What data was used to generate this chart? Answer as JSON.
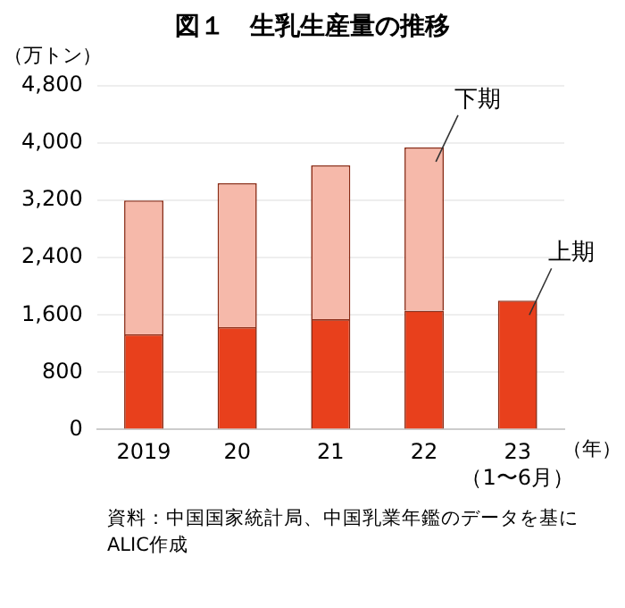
{
  "chart_data": {
    "type": "bar",
    "title": "図１　生乳生産量の推移",
    "ylabel": "（万トン）",
    "xlabel": "（年）",
    "categories": [
      "2019",
      "20",
      "21",
      "22",
      "23\n（1〜6月）"
    ],
    "stacked": true,
    "series": [
      {
        "name": "上期",
        "color": "#e8401c",
        "values": [
          1330,
          1430,
          1540,
          1660,
          1800
        ]
      },
      {
        "name": "下期",
        "color": "#f6b9aa",
        "values": [
          1870,
          2010,
          2150,
          2280,
          null
        ]
      }
    ],
    "ylim": [
      0,
      4800
    ],
    "yticks": [
      0,
      800,
      {
        "value": 1600,
        "label": "1,600"
      },
      {
        "value": 2400,
        "label": "2,400"
      },
      {
        "value": 3200,
        "label": "3,200"
      },
      {
        "value": 4000,
        "label": "4,000"
      },
      {
        "value": 4800,
        "label": "4,800"
      }
    ],
    "grid": "y",
    "legend": false,
    "annotations": [
      "資料：中国国家統計局、中国乳業年鑑のデータを基にALIC作成"
    ]
  }
}
